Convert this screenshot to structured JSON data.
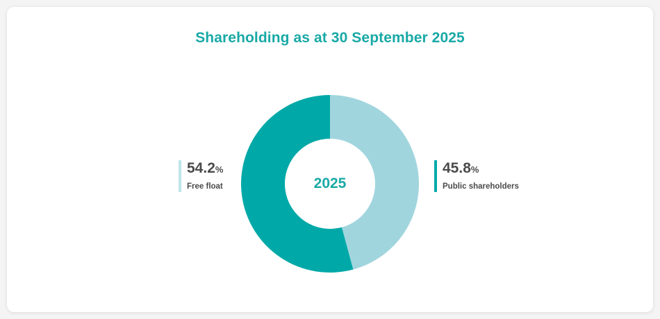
{
  "chart_data": {
    "type": "pie",
    "title": "Shareholding as at 30 September 2025",
    "center_label": "2025",
    "slices": [
      {
        "label": "Public shareholders",
        "value": 45.8,
        "display": "45.8",
        "unit": "%",
        "color": "#a1d5de"
      },
      {
        "label": "Free float",
        "value": 54.2,
        "display": "54.2",
        "unit": "%",
        "color": "#00a9a8"
      }
    ],
    "legend": [
      {
        "label": "Free float",
        "display": "54.2",
        "unit": "%",
        "bar_color": "#bfe5ea"
      },
      {
        "label": "Public shareholders",
        "display": "45.8",
        "unit": "%",
        "bar_color": "#00a9a8"
      }
    ]
  }
}
